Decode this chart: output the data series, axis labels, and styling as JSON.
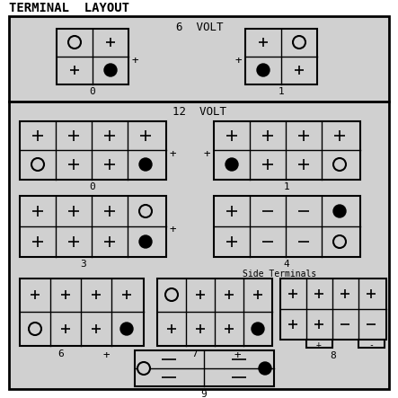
{
  "title": "TERMINAL  LAYOUT",
  "bg_color": "#d0d0d0",
  "sections": {
    "6volt_label": "6  VOLT",
    "12volt_label": "12  VOLT",
    "side_terminals_label": "Side Terminals"
  },
  "font": "monospace"
}
